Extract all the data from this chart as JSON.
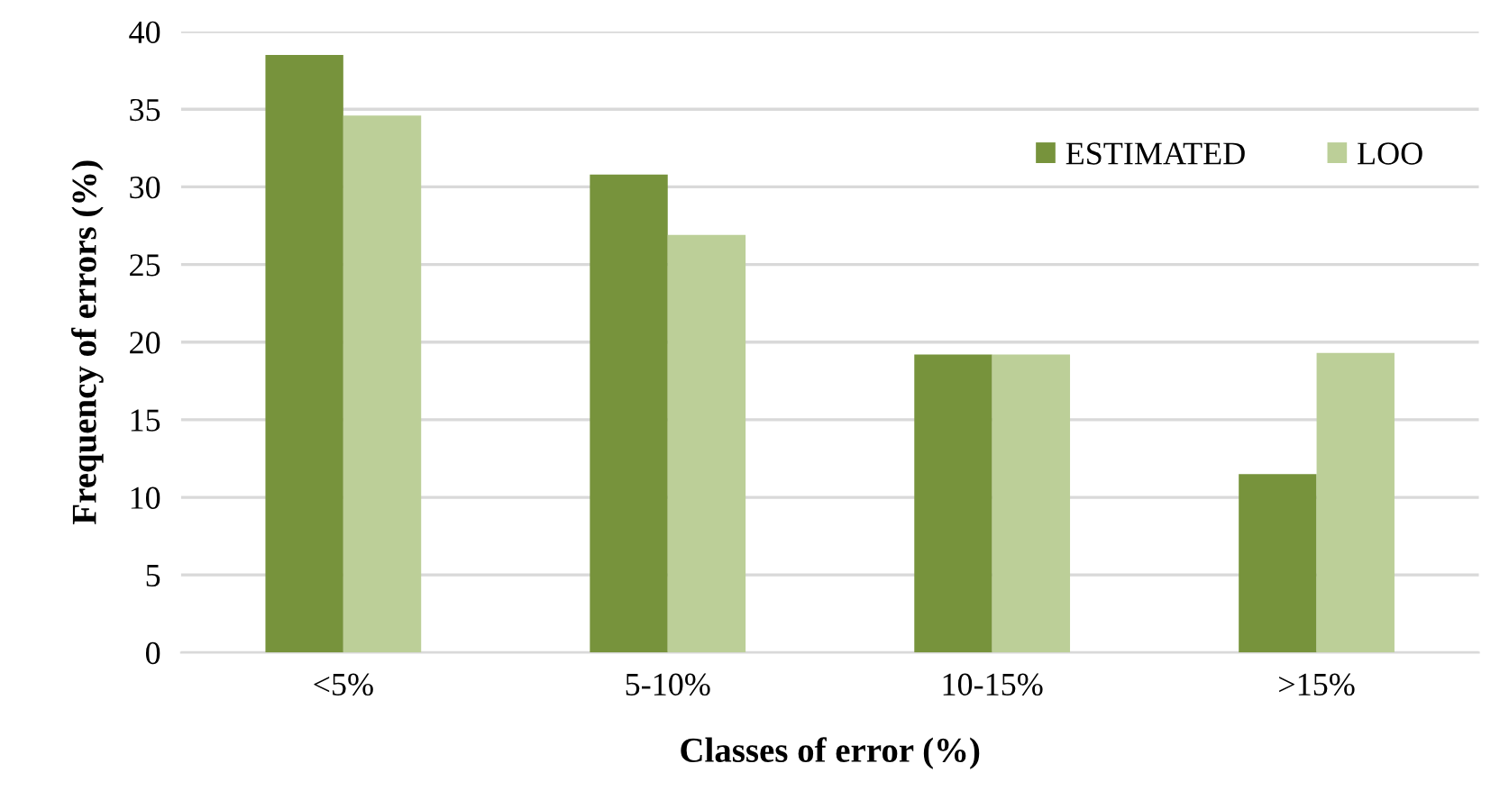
{
  "chart_data": {
    "type": "bar",
    "xlabel": "Classes of error (%)",
    "ylabel": "Frequency of errors (%)",
    "categories": [
      "<5%",
      "5-10%",
      "10-15%",
      ">15%"
    ],
    "series": [
      {
        "name": "ESTIMATED",
        "color": "#77933c",
        "values": [
          38.5,
          30.8,
          19.2,
          11.5
        ]
      },
      {
        "name": "LOO",
        "color": "#bccf98",
        "values": [
          34.6,
          26.9,
          19.2,
          19.3
        ]
      }
    ],
    "ylim": [
      0,
      40
    ],
    "yticks": [
      0,
      5,
      10,
      15,
      20,
      25,
      30,
      35,
      40
    ],
    "grid": "y",
    "legend": "top right"
  }
}
